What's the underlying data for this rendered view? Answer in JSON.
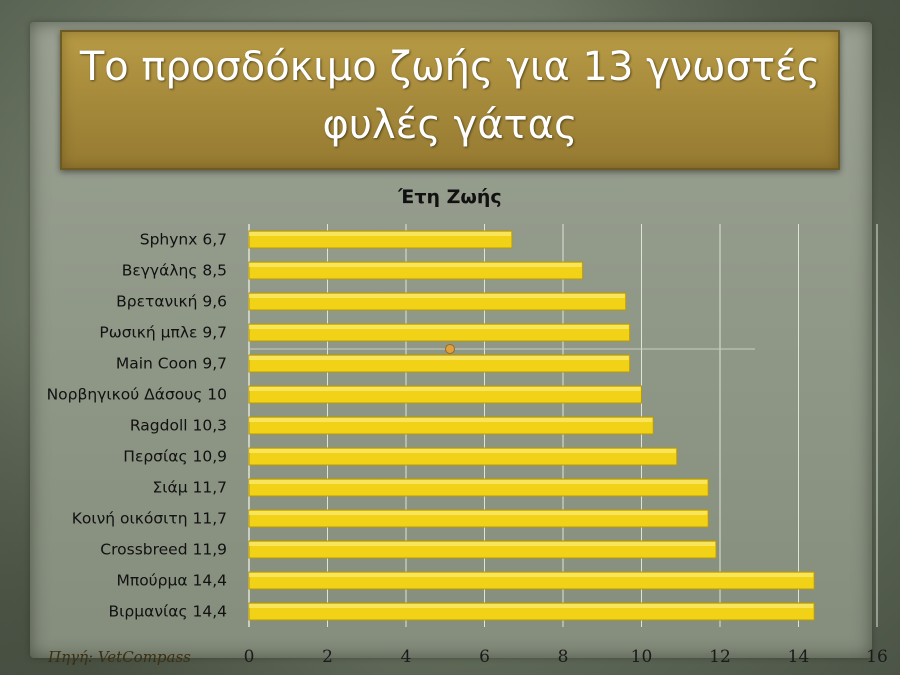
{
  "slide": {
    "title_line1": "Το προσδόκιμο ζωής για 13 γνωστές",
    "title_line2": "φυλές γάτας",
    "source_note": "Πηγή:  VetCompass"
  },
  "colors": {
    "bar": "#f2d216",
    "bar_edge": "#b89a08",
    "gridline": "#dfe3d8",
    "title_box": "#a4883a"
  },
  "chart_data": {
    "type": "bar",
    "orientation": "horizontal",
    "title": "Έτη Ζωής",
    "categories": [
      "Sphynx 6,7",
      "Βεγγάλης 8,5",
      "Βρετανική 9,6",
      "Ρωσική μπλε 9,7",
      "Main Coon 9,7",
      "Νορβηγικού Δάσους 10",
      "Ragdoll 10,3",
      "Περσίας 10,9",
      "Σιάμ 11,7",
      "Κοινή οικόσιτη 11,7",
      "Crossbreed 11,9",
      "Μπούρμα 14,4",
      "Βιρμανίας 14,4"
    ],
    "values": [
      6.7,
      8.5,
      9.6,
      9.7,
      9.7,
      10,
      10.3,
      10.9,
      11.7,
      11.7,
      11.9,
      14.4,
      14.4
    ],
    "xlim": [
      0,
      16
    ],
    "x_ticks": [
      "0",
      "2",
      "4",
      "6",
      "8",
      "10",
      "12",
      "14",
      "16"
    ],
    "grid": true,
    "legend": "none"
  }
}
